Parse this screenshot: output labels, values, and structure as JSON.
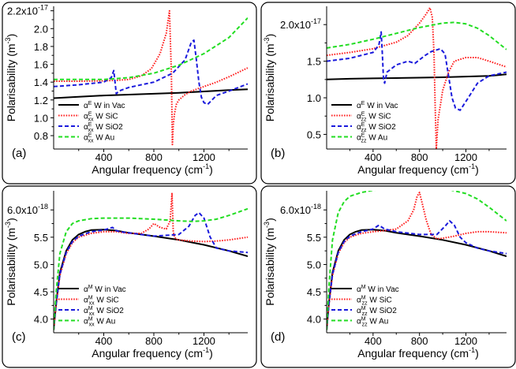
{
  "chart_data": [
    {
      "panel_label": "(a)",
      "type": "line",
      "xlabel": "Angular frequency (cm",
      "xlabel_sup": "-1",
      "xlabel_end": ")",
      "ylabel": "Polarisability (m",
      "ylabel_sup": "-3",
      "ylabel_end": ")",
      "xlim": [
        0,
        1550
      ],
      "ylim": [
        0.65,
        2.25
      ],
      "xticks": [
        400,
        800,
        1200
      ],
      "xtick_labels": [
        "400",
        "800",
        "1200"
      ],
      "yticks": [
        0.8,
        1.0,
        1.2,
        1.4,
        1.6,
        1.8,
        2.0,
        2.2
      ],
      "ytick_labels": [
        "0.8",
        "1.0",
        "1.2",
        "1.4",
        "1.6",
        "1.8",
        "2.0",
        "2.2x10"
      ],
      "ytop_exponent": "-17",
      "legend_position": "bottom-left",
      "series": [
        {
          "name": "αE W in Vac",
          "legend_main": "α",
          "legend_sup": "E",
          "legend_sub": "",
          "legend_text": " W in Vac",
          "color": "#000000",
          "style": "solid",
          "x": [
            0,
            200,
            400,
            600,
            800,
            1000,
            1200,
            1400,
            1550
          ],
          "y": [
            1.22,
            1.235,
            1.25,
            1.26,
            1.27,
            1.28,
            1.295,
            1.31,
            1.32
          ]
        },
        {
          "name": "αExx W SiC",
          "legend_main": "α",
          "legend_sup": "E",
          "legend_sub": "xx",
          "legend_text": " W SiC",
          "color": "#ff2020",
          "style": "dotted",
          "x": [
            0,
            200,
            400,
            500,
            600,
            700,
            780,
            850,
            900,
            925,
            940,
            948,
            955,
            965,
            980,
            1000,
            1050,
            1100,
            1200,
            1300,
            1400,
            1550
          ],
          "y": [
            1.41,
            1.41,
            1.415,
            1.42,
            1.43,
            1.47,
            1.55,
            1.72,
            1.95,
            2.2,
            1.5,
            0.7,
            0.92,
            1.05,
            1.15,
            1.2,
            1.26,
            1.3,
            1.35,
            1.4,
            1.46,
            1.56
          ]
        },
        {
          "name": "αExx W SiO2",
          "legend_main": "α",
          "legend_sup": "E",
          "legend_sub": "xx",
          "legend_text": " W SiO2",
          "color": "#1a1adc",
          "style": "dashed",
          "x": [
            0,
            200,
            400,
            460,
            480,
            490,
            500,
            520,
            600,
            800,
            950,
            1050,
            1100,
            1120,
            1140,
            1160,
            1180,
            1200,
            1230,
            1300,
            1400,
            1550
          ],
          "y": [
            1.35,
            1.37,
            1.4,
            1.45,
            1.53,
            1.4,
            1.27,
            1.3,
            1.34,
            1.4,
            1.5,
            1.65,
            1.85,
            1.87,
            1.65,
            1.4,
            1.23,
            1.17,
            1.15,
            1.25,
            1.3,
            1.38
          ]
        },
        {
          "name": "αExx W Au",
          "legend_main": "α",
          "legend_sup": "E",
          "legend_sub": "xx",
          "legend_text": " W Au",
          "color": "#22dd22",
          "style": "dashed",
          "x": [
            0,
            200,
            400,
            600,
            800,
            1000,
            1200,
            1400,
            1550
          ],
          "y": [
            1.43,
            1.43,
            1.43,
            1.45,
            1.5,
            1.59,
            1.72,
            1.9,
            2.12
          ]
        }
      ]
    },
    {
      "panel_label": "(b)",
      "type": "line",
      "xlabel": "Angular frequency (cm",
      "xlabel_sup": "-1",
      "xlabel_end": ")",
      "ylabel": "Polarisability (m",
      "ylabel_sup": "-3",
      "ylabel_end": ")",
      "xlim": [
        0,
        1550
      ],
      "ylim": [
        0.3,
        2.25
      ],
      "xticks": [
        400,
        800,
        1200
      ],
      "xtick_labels": [
        "400",
        "800",
        "1200"
      ],
      "yticks": [
        0.5,
        1.0,
        1.5,
        2.0
      ],
      "ytick_labels": [
        "0.5",
        "1.0",
        "1.5",
        "2.0x10"
      ],
      "ytop_exponent": "-17",
      "legend_position": "bottom-left",
      "series": [
        {
          "name": "αE W in Vac",
          "legend_main": "α",
          "legend_sup": "E",
          "legend_sub": "",
          "legend_text": " W in Vac",
          "color": "#000000",
          "style": "solid",
          "x": [
            0,
            200,
            400,
            600,
            800,
            1000,
            1200,
            1400,
            1550
          ],
          "y": [
            1.25,
            1.26,
            1.265,
            1.27,
            1.275,
            1.28,
            1.29,
            1.3,
            1.32
          ]
        },
        {
          "name": "αEzz W SiC",
          "legend_main": "α",
          "legend_sup": "E",
          "legend_sub": "zz",
          "legend_text": " W SiC",
          "color": "#ff2020",
          "style": "dotted",
          "x": [
            0,
            200,
            400,
            600,
            700,
            800,
            860,
            890,
            910,
            925,
            935,
            945,
            960,
            1000,
            1050,
            1100,
            1200,
            1300,
            1400,
            1550
          ],
          "y": [
            1.58,
            1.62,
            1.67,
            1.76,
            1.85,
            2.02,
            2.15,
            2.23,
            2.1,
            1.6,
            0.9,
            0.3,
            0.7,
            1.1,
            1.35,
            1.5,
            1.55,
            1.55,
            1.5,
            1.42
          ]
        },
        {
          "name": "αEzz W SiO2",
          "legend_main": "α",
          "legend_sup": "E",
          "legend_sub": "zz",
          "legend_text": " W SiO2",
          "color": "#1a1adc",
          "style": "dashed",
          "x": [
            0,
            200,
            400,
            450,
            470,
            480,
            490,
            500,
            520,
            600,
            700,
            760,
            800,
            850,
            900,
            980,
            1020,
            1050,
            1080,
            1110,
            1150,
            1200,
            1300,
            1400,
            1550
          ],
          "y": [
            1.5,
            1.54,
            1.62,
            1.72,
            1.9,
            1.6,
            1.25,
            1.2,
            1.35,
            1.45,
            1.5,
            1.47,
            1.52,
            1.58,
            1.63,
            1.67,
            1.6,
            1.3,
            1.0,
            0.86,
            0.83,
            0.95,
            1.2,
            1.3,
            1.35
          ]
        },
        {
          "name": "αEzz W Au",
          "legend_main": "α",
          "legend_sup": "E",
          "legend_sub": "zz",
          "legend_text": " W Au",
          "color": "#22dd22",
          "style": "dashed",
          "x": [
            0,
            200,
            400,
            600,
            800,
            1000,
            1100,
            1200,
            1300,
            1400,
            1550
          ],
          "y": [
            1.68,
            1.73,
            1.8,
            1.88,
            1.96,
            2.02,
            2.03,
            2.01,
            1.95,
            1.85,
            1.66
          ]
        }
      ]
    },
    {
      "panel_label": "(c)",
      "type": "line",
      "xlabel": "Angular frequency (cm",
      "xlabel_sup": "-1",
      "xlabel_end": ")",
      "ylabel": "Polarisability (m",
      "ylabel_sup": "-3",
      "ylabel_end": ")",
      "xlim": [
        0,
        1550
      ],
      "ylim": [
        3.75,
        6.35
      ],
      "xticks": [
        400,
        800,
        1200
      ],
      "xtick_labels": [
        "400",
        "800",
        "1200"
      ],
      "yticks": [
        4.0,
        4.5,
        5.0,
        5.5,
        6.0
      ],
      "ytick_labels": [
        "4.0",
        "4.5",
        "5.0",
        "5.5",
        "6.0x10"
      ],
      "ytop_exponent": "-18",
      "legend_position": "bottom-left",
      "series": [
        {
          "name": "αM W in Vac",
          "legend_main": "α",
          "legend_sup": "M",
          "legend_sub": "",
          "legend_text": " W in Vac",
          "color": "#000000",
          "style": "solid",
          "x": [
            0,
            20,
            50,
            100,
            150,
            200,
            250,
            300,
            400,
            500,
            600,
            800,
            1000,
            1200,
            1400,
            1550
          ],
          "y": [
            3.8,
            4.3,
            4.85,
            5.25,
            5.45,
            5.55,
            5.6,
            5.63,
            5.64,
            5.62,
            5.58,
            5.52,
            5.45,
            5.36,
            5.25,
            5.15
          ]
        },
        {
          "name": "αMxx W SiC",
          "legend_main": "α",
          "legend_sup": "M",
          "legend_sub": "xx",
          "legend_text": " W SiC",
          "color": "#ff2020",
          "style": "dotted",
          "x": [
            0,
            20,
            50,
            100,
            150,
            200,
            300,
            400,
            500,
            600,
            700,
            760,
            800,
            850,
            900,
            930,
            945,
            955,
            965,
            980,
            1000,
            1100,
            1200,
            1300,
            1400,
            1550
          ],
          "y": [
            3.8,
            4.25,
            4.8,
            5.2,
            5.4,
            5.5,
            5.57,
            5.6,
            5.6,
            5.57,
            5.57,
            5.65,
            5.75,
            5.68,
            5.65,
            5.8,
            6.3,
            5.6,
            5.5,
            5.46,
            5.45,
            5.43,
            5.42,
            5.43,
            5.45,
            5.5
          ]
        },
        {
          "name": "αMxx W SiO2",
          "legend_main": "α",
          "legend_sup": "M",
          "legend_sub": "xx",
          "legend_text": " W SiO2",
          "color": "#1a1adc",
          "style": "dashed",
          "x": [
            0,
            20,
            50,
            100,
            150,
            200,
            300,
            400,
            470,
            500,
            530,
            600,
            800,
            1000,
            1080,
            1130,
            1160,
            1200,
            1250,
            1300,
            1400,
            1550
          ],
          "y": [
            3.8,
            4.28,
            4.82,
            5.22,
            5.42,
            5.52,
            5.6,
            5.63,
            5.68,
            5.62,
            5.6,
            5.58,
            5.52,
            5.55,
            5.7,
            5.9,
            5.95,
            5.85,
            5.5,
            5.3,
            5.25,
            5.22
          ]
        },
        {
          "name": "αMxx W Au",
          "legend_main": "α",
          "legend_sup": "M",
          "legend_sub": "xx",
          "legend_text": " W Au",
          "color": "#22dd22",
          "style": "dashed",
          "x": [
            0,
            20,
            50,
            100,
            150,
            200,
            300,
            400,
            600,
            800,
            1000,
            1100,
            1200,
            1300,
            1400,
            1550
          ],
          "y": [
            3.8,
            4.5,
            5.2,
            5.6,
            5.75,
            5.8,
            5.84,
            5.85,
            5.85,
            5.83,
            5.8,
            5.79,
            5.8,
            5.83,
            5.9,
            6.02
          ]
        }
      ]
    },
    {
      "panel_label": "(d)",
      "type": "line",
      "xlabel": "Angular frequency (cm",
      "xlabel_sup": "-1",
      "xlabel_end": ")",
      "ylabel": "Polarisability (m",
      "ylabel_sup": "-3",
      "ylabel_end": ")",
      "xlim": [
        0,
        1550
      ],
      "ylim": [
        3.75,
        6.35
      ],
      "xticks": [
        400,
        800,
        1200
      ],
      "xtick_labels": [
        "400",
        "800",
        "1200"
      ],
      "yticks": [
        4.0,
        4.5,
        5.0,
        5.5,
        6.0
      ],
      "ytick_labels": [
        "4.0",
        "4.5",
        "5.0",
        "5.5",
        "6.0x10"
      ],
      "ytop_exponent": "-18",
      "legend_position": "bottom-left",
      "series": [
        {
          "name": "αM W in Vac",
          "legend_main": "α",
          "legend_sup": "M",
          "legend_sub": "",
          "legend_text": " W in Vac",
          "color": "#000000",
          "style": "solid",
          "x": [
            0,
            20,
            50,
            100,
            150,
            200,
            250,
            300,
            400,
            500,
            600,
            800,
            1000,
            1200,
            1400,
            1550
          ],
          "y": [
            3.8,
            4.3,
            4.85,
            5.25,
            5.45,
            5.55,
            5.6,
            5.63,
            5.64,
            5.62,
            5.58,
            5.52,
            5.45,
            5.36,
            5.25,
            5.15
          ]
        },
        {
          "name": "αMzz W SiC",
          "legend_main": "α",
          "legend_sup": "M",
          "legend_sub": "zz",
          "legend_text": " W SiC",
          "color": "#ff2020",
          "style": "dotted",
          "x": [
            0,
            20,
            50,
            100,
            150,
            200,
            300,
            400,
            500,
            600,
            700,
            750,
            780,
            800,
            820,
            860,
            900,
            950,
            1000,
            1100,
            1200,
            1300,
            1400,
            1550
          ],
          "y": [
            3.8,
            4.25,
            4.8,
            5.2,
            5.4,
            5.5,
            5.57,
            5.6,
            5.62,
            5.65,
            5.8,
            6.0,
            6.25,
            6.32,
            6.15,
            5.8,
            5.55,
            5.47,
            5.48,
            5.52,
            5.57,
            5.6,
            5.6,
            5.58
          ]
        },
        {
          "name": "αMzz W SiO2",
          "legend_main": "α",
          "legend_sup": "M",
          "legend_sub": "zz",
          "legend_text": " W SiO2",
          "color": "#1a1adc",
          "style": "dashed",
          "x": [
            0,
            20,
            50,
            100,
            150,
            200,
            300,
            400,
            450,
            500,
            600,
            800,
            950,
            1020,
            1060,
            1100,
            1150,
            1200,
            1300,
            1400,
            1550
          ],
          "y": [
            3.8,
            4.28,
            4.82,
            5.22,
            5.42,
            5.52,
            5.6,
            5.65,
            5.72,
            5.65,
            5.6,
            5.55,
            5.55,
            5.7,
            5.8,
            5.72,
            5.5,
            5.4,
            5.3,
            5.25,
            5.2
          ]
        },
        {
          "name": "αMzz W Au",
          "legend_main": "α",
          "legend_sup": "M",
          "legend_sub": "zz",
          "legend_text": " W Au",
          "color": "#22dd22",
          "style": "dashed",
          "x": [
            0,
            20,
            50,
            100,
            150,
            200,
            300,
            400,
            600,
            800,
            1000,
            1100,
            1200,
            1300,
            1400,
            1550
          ],
          "y": [
            3.8,
            4.6,
            5.45,
            5.95,
            6.15,
            6.25,
            6.32,
            6.36,
            6.4,
            6.42,
            6.4,
            6.35,
            6.3,
            6.2,
            6.05,
            5.8
          ]
        }
      ]
    }
  ]
}
